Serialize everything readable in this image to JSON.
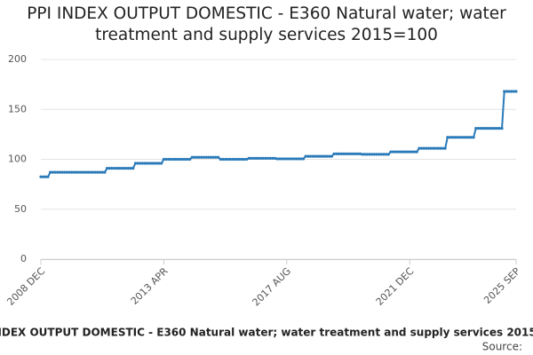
{
  "chart_data": {
    "type": "line",
    "title": "PPI INDEX OUTPUT DOMESTIC - E360 Natural water; water treatment and supply services 2015=100",
    "source": "Source:",
    "color": "#2a7ab9",
    "grid": true,
    "ylim": [
      0,
      200
    ],
    "yticks": [
      0,
      50,
      100,
      150,
      200
    ],
    "categories": [
      "2008 DEC",
      null,
      null,
      null,
      null,
      null,
      null,
      null,
      null,
      null,
      null,
      null,
      null,
      null,
      null,
      null,
      null,
      null,
      null,
      null,
      null,
      null,
      null,
      null,
      null,
      null,
      null,
      null,
      null,
      null,
      null,
      null,
      null,
      null,
      null,
      null,
      null,
      null,
      null,
      null,
      null,
      null,
      null,
      null,
      null,
      null,
      null,
      null,
      null,
      null,
      null,
      null,
      "2013 APR",
      null,
      null,
      null,
      null,
      null,
      null,
      null,
      null,
      null,
      null,
      null,
      null,
      null,
      null,
      null,
      null,
      null,
      null,
      null,
      null,
      null,
      null,
      null,
      null,
      null,
      null,
      null,
      null,
      null,
      null,
      null,
      null,
      null,
      null,
      null,
      null,
      null,
      null,
      null,
      null,
      null,
      null,
      null,
      null,
      null,
      null,
      null,
      null,
      null,
      null,
      null,
      "2017 AUG",
      null,
      null,
      null,
      null,
      null,
      null,
      null,
      null,
      null,
      null,
      null,
      null,
      null,
      null,
      null,
      null,
      null,
      null,
      null,
      null,
      null,
      null,
      null,
      null,
      null,
      null,
      null,
      null,
      null,
      null,
      null,
      null,
      null,
      null,
      null,
      null,
      null,
      null,
      null,
      null,
      null,
      null,
      null,
      null,
      null,
      null,
      null,
      null,
      null,
      null,
      null,
      "2021 DEC",
      null,
      null,
      null,
      null,
      null,
      null,
      null,
      null,
      null,
      null,
      null,
      null,
      null,
      null,
      null,
      null,
      null,
      null,
      null,
      null,
      null,
      null,
      null,
      null,
      null,
      null,
      null,
      null,
      null,
      null,
      null,
      null,
      null,
      null,
      null,
      null,
      null,
      null,
      null,
      null,
      null,
      null,
      null,
      null,
      "2025 SEP"
    ],
    "values": [
      82.5,
      82.5,
      82.5,
      82.5,
      87,
      87,
      87,
      87,
      87,
      87,
      87,
      87,
      87,
      87,
      87,
      87,
      87,
      87,
      87,
      87,
      87,
      87,
      87,
      87,
      87,
      87,
      87,
      87,
      91,
      91,
      91,
      91,
      91,
      91,
      91,
      91,
      91,
      91,
      91,
      91,
      96,
      96,
      96,
      96,
      96,
      96,
      96,
      96,
      96,
      96,
      96,
      96,
      100,
      100,
      100,
      100,
      100,
      100,
      100,
      100,
      100,
      100,
      100,
      100,
      102,
      102,
      102,
      102,
      102,
      102,
      102,
      102,
      102,
      102,
      102,
      102,
      100,
      100,
      100,
      100,
      100,
      100,
      100,
      100,
      100,
      100,
      100,
      100,
      101,
      101,
      101,
      101,
      101,
      101,
      101,
      101,
      101,
      101,
      101,
      101,
      100.5,
      100.5,
      100.5,
      100.5,
      100.5,
      100.5,
      100.5,
      100.5,
      100.5,
      100.5,
      100.5,
      100.5,
      103,
      103,
      103,
      103,
      103,
      103,
      103,
      103,
      103,
      103,
      103,
      103,
      105.5,
      105.5,
      105.5,
      105.5,
      105.5,
      105.5,
      105.5,
      105.5,
      105.5,
      105.5,
      105.5,
      105.5,
      105,
      105,
      105,
      105,
      105,
      105,
      105,
      105,
      105,
      105,
      105,
      105,
      107.5,
      107.5,
      107.5,
      107.5,
      107.5,
      107.5,
      107.5,
      107.5,
      107.5,
      107.5,
      107.5,
      107.5,
      111,
      111,
      111,
      111,
      111,
      111,
      111,
      111,
      111,
      111,
      111,
      111,
      122,
      122,
      122,
      122,
      122,
      122,
      122,
      122,
      122,
      122,
      122,
      122,
      131,
      131,
      131,
      131,
      131,
      131,
      131,
      131,
      131,
      131,
      131,
      131,
      168,
      168,
      168,
      168,
      168,
      168
    ]
  }
}
